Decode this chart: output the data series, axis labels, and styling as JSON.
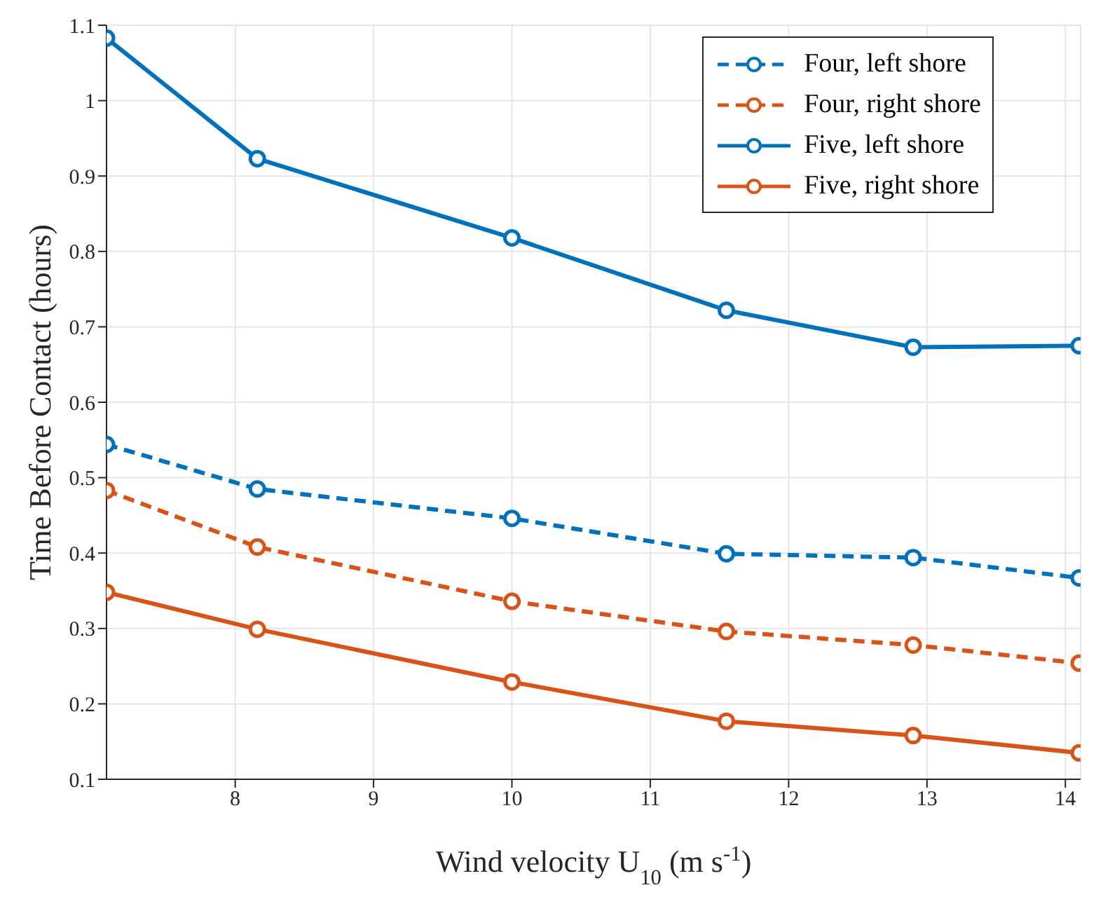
{
  "chart_data": {
    "type": "line",
    "xlabel": "Wind velocity U$_{10}$ (m s$^{-1}$)",
    "ylabel": "Time Before Contact (hours)",
    "x": [
      7.07,
      8.16,
      10.0,
      11.55,
      12.9,
      14.1
    ],
    "series": [
      {
        "name": "Four, left shore",
        "color": "#0072bd",
        "line_style": "dashed",
        "values": [
          0.544,
          0.485,
          0.446,
          0.399,
          0.394,
          0.367
        ]
      },
      {
        "name": "Four, right shore",
        "color": "#d95319",
        "line_style": "dashed",
        "values": [
          0.483,
          0.408,
          0.336,
          0.296,
          0.278,
          0.254
        ]
      },
      {
        "name": "Five, left shore",
        "color": "#0072bd",
        "line_style": "solid",
        "values": [
          1.083,
          0.923,
          0.818,
          0.722,
          0.673,
          0.675
        ]
      },
      {
        "name": "Five, right shore",
        "color": "#d95319",
        "line_style": "solid",
        "values": [
          0.348,
          0.299,
          0.229,
          0.177,
          0.158,
          0.135
        ]
      }
    ],
    "xlim": [
      7.07,
      14.11
    ],
    "xticks": [
      8,
      9,
      10,
      11,
      12,
      13,
      14
    ],
    "ylim": [
      0.1,
      1.1
    ],
    "yticks": [
      0.1,
      0.2,
      0.3,
      0.4,
      0.5,
      0.6,
      0.7,
      0.8,
      0.9,
      1,
      1.1
    ],
    "grid": true,
    "legend": "top right",
    "marker": "circle"
  }
}
